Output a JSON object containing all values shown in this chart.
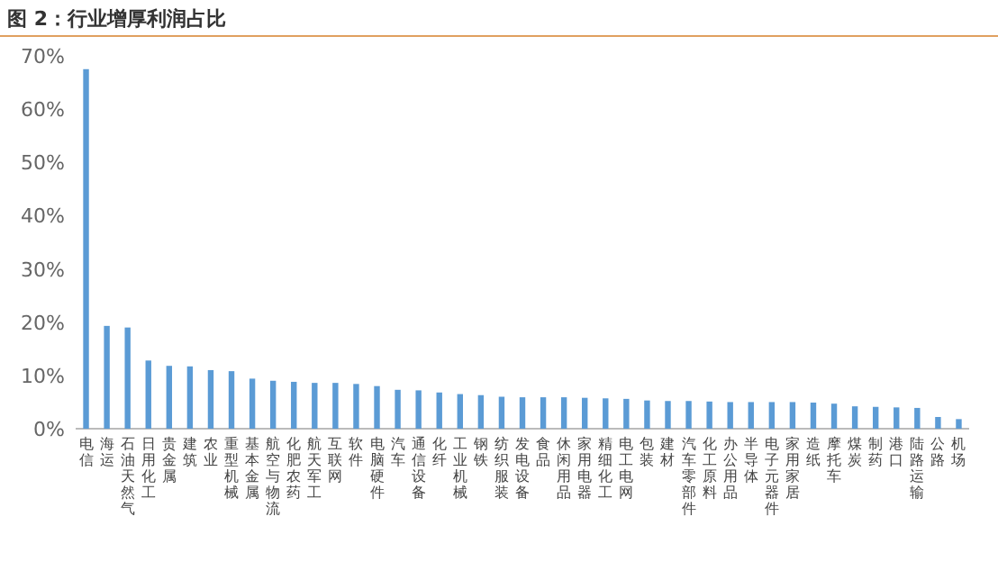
{
  "chart_data": {
    "type": "bar",
    "title": "图 2：行业增厚利润占比",
    "categories": [
      "电信",
      "海运",
      "石油天然气",
      "日用化工",
      "贵金属",
      "建筑",
      "农业",
      "重型机械",
      "基本金属",
      "航空与物流",
      "化肥农药",
      "航天军工",
      "互联网",
      "软件",
      "电脑硬件",
      "汽车",
      "通信设备",
      "化纤",
      "工业机械",
      "钢铁",
      "纺织服装",
      "发电设备",
      "食品",
      "休闲用品",
      "家用电器",
      "精细化工",
      "电工电网",
      "包装",
      "建材",
      "汽车零部件",
      "化工原料",
      "办公用品",
      "半导体",
      "电子元器件",
      "家用家居",
      "造纸",
      "摩托车",
      "煤炭",
      "制药",
      "港口",
      "陆路运输",
      "公路",
      "机场"
    ],
    "values": [
      67.5,
      19.3,
      19,
      12.8,
      11.8,
      11.7,
      11,
      10.8,
      9.4,
      9,
      8.8,
      8.6,
      8.6,
      8.4,
      8,
      7.3,
      7.2,
      6.8,
      6.5,
      6.3,
      6,
      5.9,
      5.9,
      5.9,
      5.8,
      5.7,
      5.6,
      5.3,
      5.2,
      5.2,
      5.1,
      5,
      5,
      5,
      5,
      4.9,
      4.7,
      4.2,
      4.1,
      4,
      3.9,
      2.2,
      1.8
    ],
    "color": "#5b9bd5",
    "ylim": [
      0,
      70
    ],
    "yticks": [
      {
        "value": 0,
        "label": "0%"
      },
      {
        "value": 10,
        "label": "10%"
      },
      {
        "value": 20,
        "label": "20%"
      },
      {
        "value": 30,
        "label": "30%"
      },
      {
        "value": 40,
        "label": "40%"
      },
      {
        "value": 50,
        "label": "50%"
      },
      {
        "value": 60,
        "label": "60%"
      },
      {
        "value": 70,
        "label": "70%"
      }
    ],
    "grid": false
  }
}
